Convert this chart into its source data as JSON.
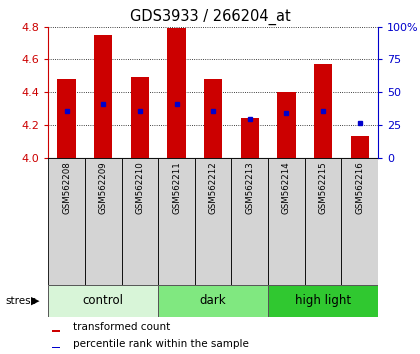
{
  "title": "GDS3933 / 266204_at",
  "samples": [
    "GSM562208",
    "GSM562209",
    "GSM562210",
    "GSM562211",
    "GSM562212",
    "GSM562213",
    "GSM562214",
    "GSM562215",
    "GSM562216"
  ],
  "transformed_counts": [
    4.48,
    4.75,
    4.49,
    4.79,
    4.48,
    4.24,
    4.4,
    4.57,
    4.13
  ],
  "percentile_values": [
    4.285,
    4.325,
    4.285,
    4.328,
    4.285,
    4.238,
    4.272,
    4.285,
    4.208
  ],
  "ylim_left": [
    4.0,
    4.8
  ],
  "ylim_right": [
    0,
    100
  ],
  "yticks_left": [
    4.0,
    4.2,
    4.4,
    4.6,
    4.8
  ],
  "yticks_right": [
    0,
    25,
    50,
    75,
    100
  ],
  "groups": [
    {
      "label": "control",
      "start": 0,
      "end": 3,
      "color": "#d8f5d8"
    },
    {
      "label": "dark",
      "start": 3,
      "end": 6,
      "color": "#80e880"
    },
    {
      "label": "high light",
      "start": 6,
      "end": 9,
      "color": "#30c830"
    }
  ],
  "bar_color": "#cc0000",
  "dot_color": "#0000cc",
  "bar_width": 0.5,
  "background_color": "#ffffff",
  "left_axis_color": "#cc0000",
  "right_axis_color": "#0000cc",
  "stress_label": "stress",
  "legend_items": [
    {
      "label": "transformed count",
      "color": "#cc0000"
    },
    {
      "label": "percentile rank within the sample",
      "color": "#0000cc"
    }
  ]
}
